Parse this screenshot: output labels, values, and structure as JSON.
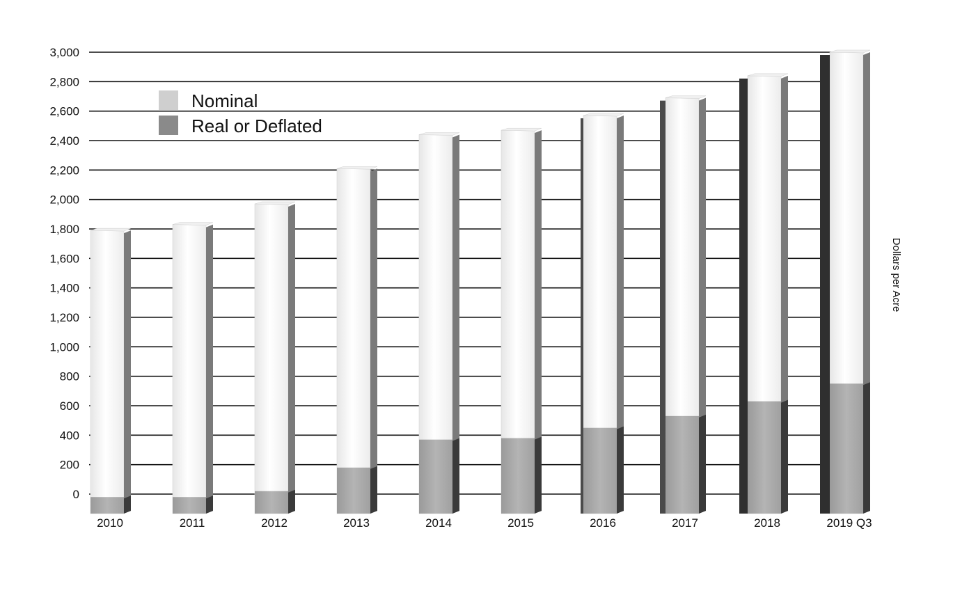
{
  "chart_data": {
    "type": "bar",
    "categories": [
      "2010",
      "2011",
      "2012",
      "2013",
      "2014",
      "2015",
      "2016",
      "2017",
      "2018",
      "2019 Q3"
    ],
    "series": [
      {
        "name": "Nominal",
        "values": [
          1790,
          1830,
          1970,
          2210,
          2440,
          2470,
          2570,
          2690,
          2840,
          3000
        ],
        "color": "#f4f4f4"
      },
      {
        "name": "Real or Deflated",
        "values": [
          -20,
          -20,
          20,
          180,
          370,
          380,
          450,
          530,
          630,
          750
        ],
        "color": "#a8a8a8"
      }
    ],
    "ylabel": "Dollars per Acre",
    "ylim": [
      -120,
      3000
    ],
    "yticks": [
      "0",
      "200",
      "400",
      "600",
      "800",
      "1,000",
      "1,200",
      "1,400",
      "1,600",
      "1,800",
      "2,000",
      "2,200",
      "2,400",
      "2,600",
      "2,800",
      "3,000"
    ],
    "ytick_values": [
      0,
      200,
      400,
      600,
      800,
      1000,
      1200,
      1400,
      1600,
      1800,
      2000,
      2200,
      2400,
      2600,
      2800,
      3000
    ],
    "grid": true,
    "legend_position": "top-left",
    "colors": {
      "gridline": "#111111",
      "bar_side": "#7a7a7a",
      "real_side": "#3a3a3a",
      "legend_nominal": "#cfcfcf",
      "legend_real": "#8a8a8a"
    }
  }
}
